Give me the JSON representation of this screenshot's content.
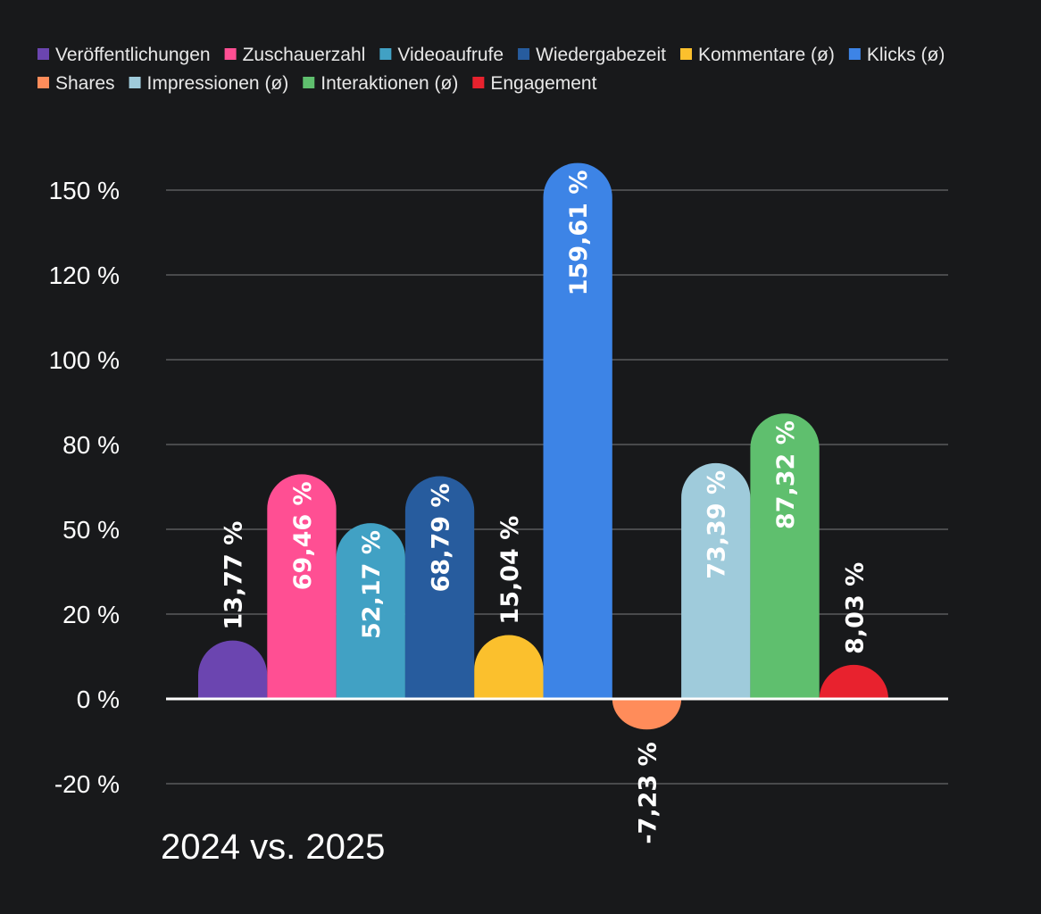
{
  "chart_data": {
    "type": "bar",
    "categories": [
      "2024 vs. 2025"
    ],
    "series": [
      {
        "name": "Veröffentlichungen",
        "value": 13.77,
        "label": "13,77 %",
        "color": "#6b45b0"
      },
      {
        "name": "Zuschauerzahl",
        "value": 69.46,
        "label": "69,46 %",
        "color": "#ff4f93"
      },
      {
        "name": "Videoaufrufe",
        "value": 52.17,
        "label": "52,17 %",
        "color": "#41a1c4"
      },
      {
        "name": "Wiedergabezeit",
        "value": 68.79,
        "label": "68,79 %",
        "color": "#275c9e"
      },
      {
        "name": "Kommentare (ø)",
        "value": 15.04,
        "label": "15,04 %",
        "color": "#fbc02d"
      },
      {
        "name": "Klicks (ø)",
        "value": 159.61,
        "label": "159,61 %",
        "color": "#3d84e6"
      },
      {
        "name": "Shares",
        "value": -7.23,
        "label": "-7,23 %",
        "color": "#ff8c5a"
      },
      {
        "name": "Impressionen (ø)",
        "value": 73.39,
        "label": "73,39 %",
        "color": "#9fcbdb"
      },
      {
        "name": "Interaktionen (ø)",
        "value": 87.32,
        "label": "87,32 %",
        "color": "#5fbf6e"
      },
      {
        "name": "Engagement",
        "value": 8.03,
        "label": "8,03 %",
        "color": "#e8222e"
      }
    ],
    "y_ticks": [
      {
        "value": 150,
        "label": "150 %"
      },
      {
        "value": 120,
        "label": "120 %"
      },
      {
        "value": 100,
        "label": "100 %"
      },
      {
        "value": 80,
        "label": "80 %"
      },
      {
        "value": 50,
        "label": "50 %"
      },
      {
        "value": 20,
        "label": "20 %"
      },
      {
        "value": 0,
        "label": "0 %"
      },
      {
        "value": -20,
        "label": "-20 %"
      }
    ],
    "ylim": [
      -27,
      165
    ],
    "grid": true,
    "legend": "top",
    "title": "",
    "xlabel": "",
    "ylabel": ""
  }
}
